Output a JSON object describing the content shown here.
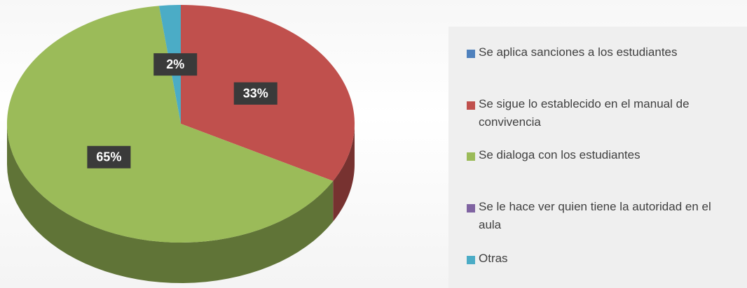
{
  "chart_data": {
    "type": "pie3d",
    "categories": [
      "Se aplica sanciones a los estudiantes",
      "Se sigue lo establecido en el manual de convivencia",
      "Se dialoga con los estudiantes",
      "Se le hace ver quien tiene la autoridad en el aula",
      "Otras"
    ],
    "values": [
      0,
      33,
      65,
      0,
      2
    ],
    "value_labels": [
      null,
      "33%",
      "65%",
      null,
      "2%"
    ],
    "colors": [
      "#4f81bd",
      "#c0504d",
      "#9bbb59",
      "#8064a2",
      "#4bacc6"
    ],
    "legend": "right"
  }
}
